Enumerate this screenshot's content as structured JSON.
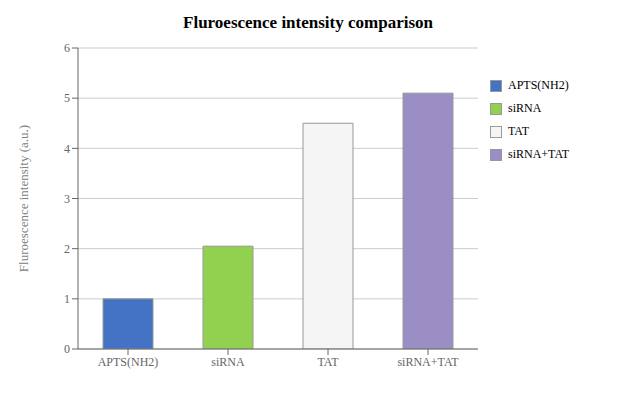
{
  "chart_data": {
    "type": "bar",
    "title": "Fluroescence intensity comparison",
    "ylabel": "Fluroescence intensity (a.u.)",
    "categories": [
      "APTS(NH2)",
      "siRNA",
      "TAT",
      "siRNA+TAT"
    ],
    "values": [
      1.0,
      2.05,
      4.5,
      5.1
    ],
    "colors": [
      "#4472C4",
      "#92D050",
      "#F5F5F5",
      "#9B8EC4"
    ],
    "ylim": [
      0,
      6
    ],
    "yticks": [
      0,
      1,
      2,
      3,
      4,
      5,
      6
    ],
    "grid": true,
    "legend": "right"
  }
}
